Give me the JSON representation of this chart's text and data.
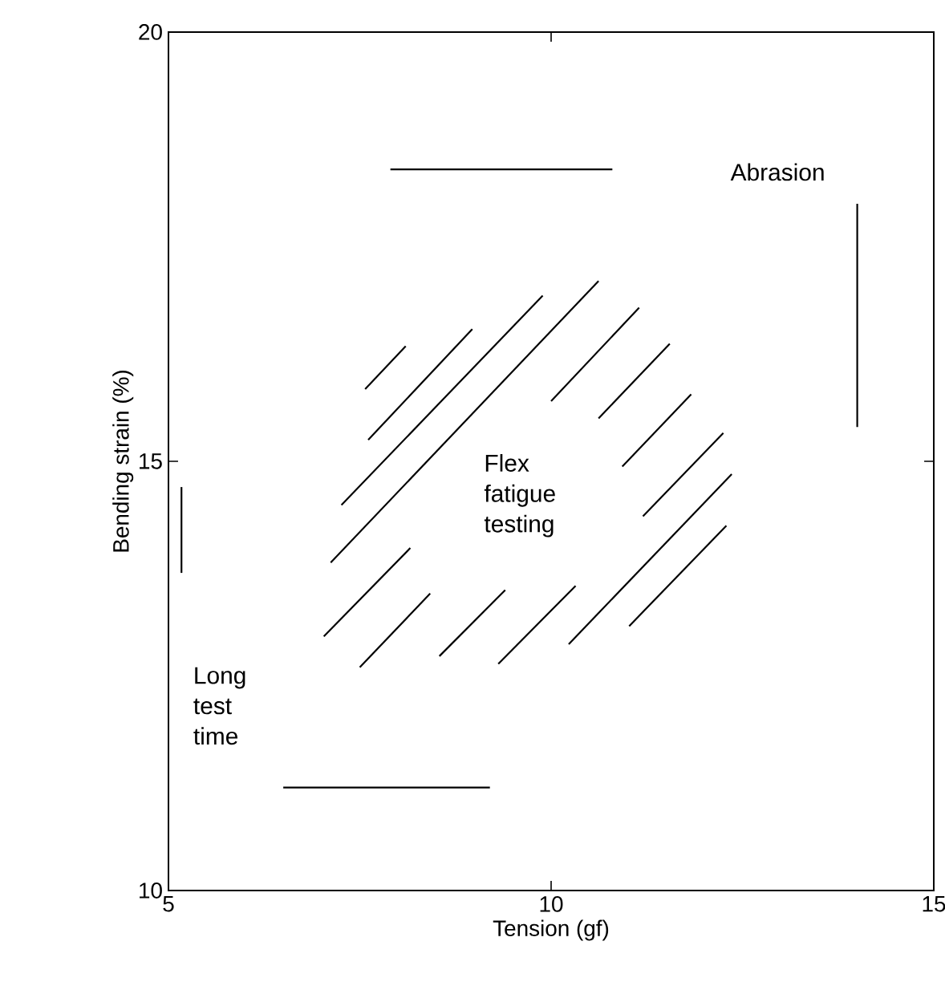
{
  "chart_data": {
    "type": "line",
    "xlabel": "Tension (gf)",
    "ylabel": "Bending strain (%)",
    "xlim": [
      5,
      15
    ],
    "ylim": [
      10,
      20
    ],
    "xticks": [
      5,
      10,
      15
    ],
    "yticks": [
      10,
      15,
      20
    ],
    "grid": false,
    "marker": "none",
    "line_style": "solid",
    "series": [
      {
        "color": "#000000",
        "x": [
          7.9,
          10.8
        ],
        "values": [
          18.4,
          18.4
        ]
      },
      {
        "color": "#000000",
        "x": [
          14.0,
          14.0
        ],
        "values": [
          15.4,
          18.0
        ]
      },
      {
        "color": "#000000",
        "x": [
          5.17,
          5.17
        ],
        "values": [
          13.7,
          14.7
        ]
      },
      {
        "color": "#000000",
        "x": [
          6.5,
          9.2
        ],
        "values": [
          11.2,
          11.2
        ]
      },
      {
        "color": "#000000",
        "x": [
          7.57,
          8.1
        ],
        "values": [
          15.84,
          16.34
        ]
      },
      {
        "color": "#000000",
        "x": [
          7.61,
          8.97
        ],
        "values": [
          15.25,
          16.54
        ]
      },
      {
        "color": "#000000",
        "x": [
          7.26,
          9.89
        ],
        "values": [
          14.49,
          16.93
        ]
      },
      {
        "color": "#000000",
        "x": [
          7.12,
          10.62
        ],
        "values": [
          13.82,
          17.1
        ]
      },
      {
        "color": "#000000",
        "x": [
          10.0,
          11.15
        ],
        "values": [
          15.7,
          16.79
        ]
      },
      {
        "color": "#000000",
        "x": [
          10.62,
          11.55
        ],
        "values": [
          15.5,
          16.37
        ]
      },
      {
        "color": "#000000",
        "x": [
          10.93,
          11.83
        ],
        "values": [
          14.94,
          15.78
        ]
      },
      {
        "color": "#000000",
        "x": [
          11.2,
          12.25
        ],
        "values": [
          14.36,
          15.33
        ]
      },
      {
        "color": "#000000",
        "x": [
          7.03,
          8.16
        ],
        "values": [
          12.96,
          13.99
        ]
      },
      {
        "color": "#000000",
        "x": [
          7.5,
          8.42
        ],
        "values": [
          12.6,
          13.46
        ]
      },
      {
        "color": "#000000",
        "x": [
          8.54,
          9.4
        ],
        "values": [
          12.73,
          13.5
        ]
      },
      {
        "color": "#000000",
        "x": [
          9.31,
          10.32
        ],
        "values": [
          12.64,
          13.55
        ]
      },
      {
        "color": "#000000",
        "x": [
          10.23,
          12.36
        ],
        "values": [
          12.87,
          14.85
        ]
      },
      {
        "color": "#000000",
        "x": [
          11.02,
          12.29
        ],
        "values": [
          13.08,
          14.25
        ]
      }
    ],
    "annotations": [
      "Abrasion",
      "Flex fatigue testing",
      "Long test time"
    ]
  }
}
